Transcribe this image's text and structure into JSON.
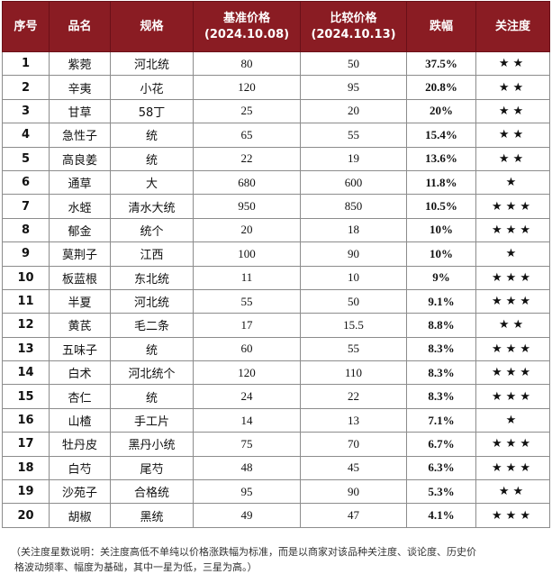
{
  "headers": {
    "no": "序号",
    "name": "品名",
    "spec": "规格",
    "base_price": "基准价格",
    "base_date": "(2024.10.08)",
    "compare_price": "比较价格",
    "compare_date": "(2024.10.13)",
    "drop": "跌幅",
    "attention": "关注度"
  },
  "rows": [
    {
      "no": "1",
      "name": "紫菀",
      "spec": "河北统",
      "base": "80",
      "compare": "50",
      "drop": "37.5%",
      "stars": 2
    },
    {
      "no": "2",
      "name": "辛夷",
      "spec": "小花",
      "base": "120",
      "compare": "95",
      "drop": "20.8%",
      "stars": 2
    },
    {
      "no": "3",
      "name": "甘草",
      "spec": "58丁",
      "base": "25",
      "compare": "20",
      "drop": "20%",
      "stars": 2
    },
    {
      "no": "4",
      "name": "急性子",
      "spec": "统",
      "base": "65",
      "compare": "55",
      "drop": "15.4%",
      "stars": 2
    },
    {
      "no": "5",
      "name": "高良姜",
      "spec": "统",
      "base": "22",
      "compare": "19",
      "drop": "13.6%",
      "stars": 2
    },
    {
      "no": "6",
      "name": "通草",
      "spec": "大",
      "base": "680",
      "compare": "600",
      "drop": "11.8%",
      "stars": 1
    },
    {
      "no": "7",
      "name": "水蛭",
      "spec": "清水大统",
      "base": "950",
      "compare": "850",
      "drop": "10.5%",
      "stars": 3
    },
    {
      "no": "8",
      "name": "郁金",
      "spec": "统个",
      "base": "20",
      "compare": "18",
      "drop": "10%",
      "stars": 3
    },
    {
      "no": "9",
      "name": "莫荆子",
      "spec": "江西",
      "base": "100",
      "compare": "90",
      "drop": "10%",
      "stars": 1
    },
    {
      "no": "10",
      "name": "板蓝根",
      "spec": "东北统",
      "base": "11",
      "compare": "10",
      "drop": "9%",
      "stars": 3
    },
    {
      "no": "11",
      "name": "半夏",
      "spec": "河北统",
      "base": "55",
      "compare": "50",
      "drop": "9.1%",
      "stars": 3
    },
    {
      "no": "12",
      "name": "黄芪",
      "spec": "毛二条",
      "base": "17",
      "compare": "15.5",
      "drop": "8.8%",
      "stars": 2
    },
    {
      "no": "13",
      "name": "五味子",
      "spec": "统",
      "base": "60",
      "compare": "55",
      "drop": "8.3%",
      "stars": 3
    },
    {
      "no": "14",
      "name": "白术",
      "spec": "河北统个",
      "base": "120",
      "compare": "110",
      "drop": "8.3%",
      "stars": 3
    },
    {
      "no": "15",
      "name": "杏仁",
      "spec": "统",
      "base": "24",
      "compare": "22",
      "drop": "8.3%",
      "stars": 3
    },
    {
      "no": "16",
      "name": "山楂",
      "spec": "手工片",
      "base": "14",
      "compare": "13",
      "drop": "7.1%",
      "stars": 1
    },
    {
      "no": "17",
      "name": "牡丹皮",
      "spec": "黑丹小统",
      "base": "75",
      "compare": "70",
      "drop": "6.7%",
      "stars": 3
    },
    {
      "no": "18",
      "name": "白芍",
      "spec": "尾芍",
      "base": "48",
      "compare": "45",
      "drop": "6.3%",
      "stars": 3
    },
    {
      "no": "19",
      "name": "沙苑子",
      "spec": "合格统",
      "base": "95",
      "compare": "90",
      "drop": "5.3%",
      "stars": 2
    },
    {
      "no": "20",
      "name": "胡椒",
      "spec": "黑统",
      "base": "49",
      "compare": "47",
      "drop": "4.1%",
      "stars": 3
    }
  ],
  "note_line1": "（关注度星数说明：关注度高低不单纯以价格涨跌幅为标准，而是以商家对该品种关注度、谈论度、历史价",
  "note_line2": "格波动频率、幅度为基础，其中一星为低，三星为高。）",
  "colors": {
    "header_bg": "#8a1c23",
    "drop_text": "#1f9a3a",
    "star": "#f2a11b"
  },
  "icons": {
    "rating": "star-icon"
  }
}
